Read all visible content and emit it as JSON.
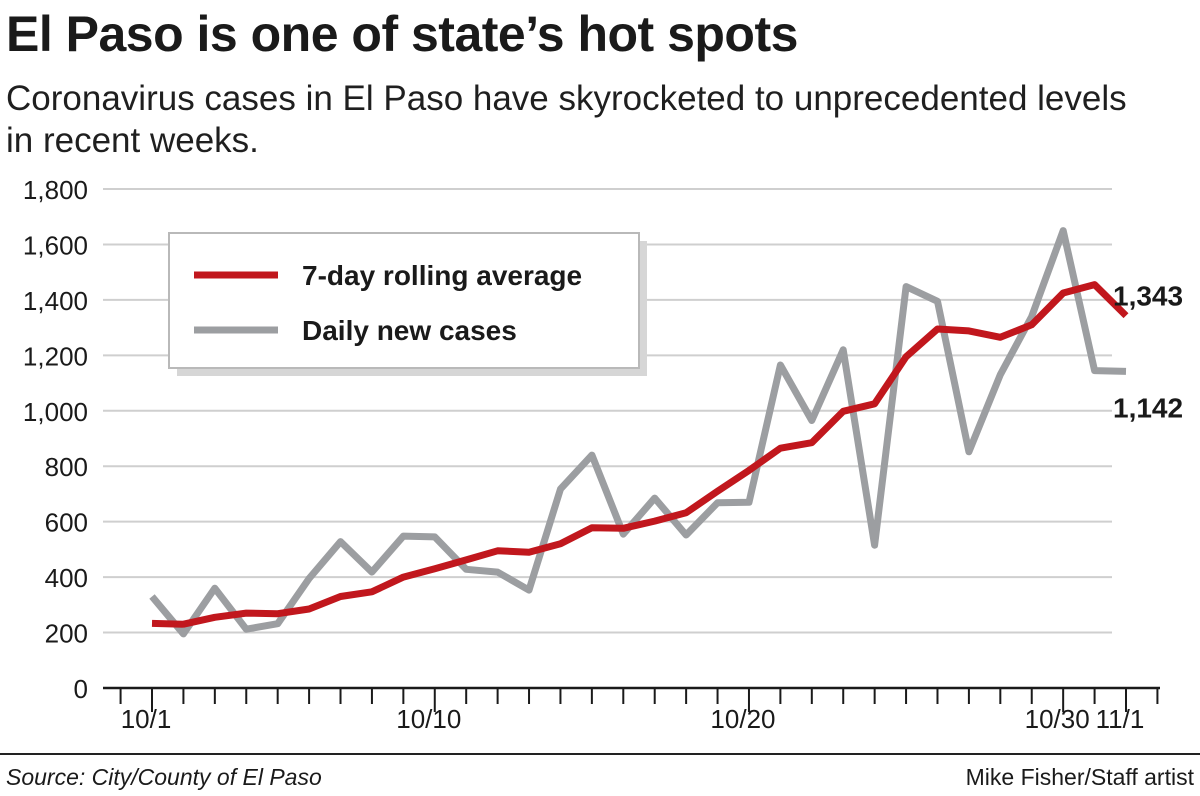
{
  "header": {
    "title": "El Paso is one of state’s hot spots",
    "subtitle": "Coronavirus cases in El Paso have skyrocketed to unprecedented levels in recent weeks."
  },
  "footer": {
    "source": "Source: City/County of El Paso",
    "credit": "Mike Fisher/Staff artist"
  },
  "chart_data": {
    "type": "line",
    "x": [
      "10/1",
      "10/2",
      "10/3",
      "10/4",
      "10/5",
      "10/6",
      "10/7",
      "10/8",
      "10/9",
      "10/10",
      "10/11",
      "10/12",
      "10/13",
      "10/14",
      "10/15",
      "10/16",
      "10/17",
      "10/18",
      "10/19",
      "10/20",
      "10/21",
      "10/22",
      "10/23",
      "10/24",
      "10/25",
      "10/26",
      "10/27",
      "10/28",
      "10/29",
      "10/30",
      "10/31",
      "11/1"
    ],
    "x_tick_labels": [
      "10/1",
      "10/10",
      "10/20",
      "10/30",
      "11/1"
    ],
    "ylim": [
      0,
      1800
    ],
    "y_ticks": [
      0,
      200,
      400,
      600,
      800,
      1000,
      1200,
      1400,
      1600,
      1800
    ],
    "y_tick_labels": [
      "0",
      "200",
      "400",
      "600",
      "800",
      "1,000",
      "1,200",
      "1,400",
      "1,600",
      "1,800"
    ],
    "grid": "horizontal",
    "legend_position": "top-left",
    "series": [
      {
        "name": "7-day rolling average",
        "color": "#c1171d",
        "values": [
          233,
          230,
          255,
          270,
          268,
          285,
          330,
          347,
          400,
          430,
          462,
          495,
          490,
          520,
          578,
          576,
          602,
          632,
          710,
          785,
          865,
          885,
          998,
          1025,
          1195,
          1295,
          1288,
          1265,
          1310,
          1425,
          1455,
          1343
        ]
      },
      {
        "name": "Daily new cases",
        "color": "#9c9ea1",
        "values": [
          330,
          195,
          360,
          212,
          232,
          395,
          528,
          418,
          548,
          545,
          428,
          418,
          353,
          718,
          840,
          555,
          685,
          552,
          668,
          670,
          1165,
          965,
          1220,
          515,
          1448,
          1395,
          852,
          1130,
          1340,
          1650,
          1145,
          1142
        ]
      }
    ],
    "annotations": [
      {
        "series": "7-day rolling average",
        "x": "11/1",
        "value": 1343,
        "label": "1,343"
      },
      {
        "series": "Daily new cases",
        "x": "11/1",
        "value": 1142,
        "label": "1,142"
      }
    ]
  }
}
